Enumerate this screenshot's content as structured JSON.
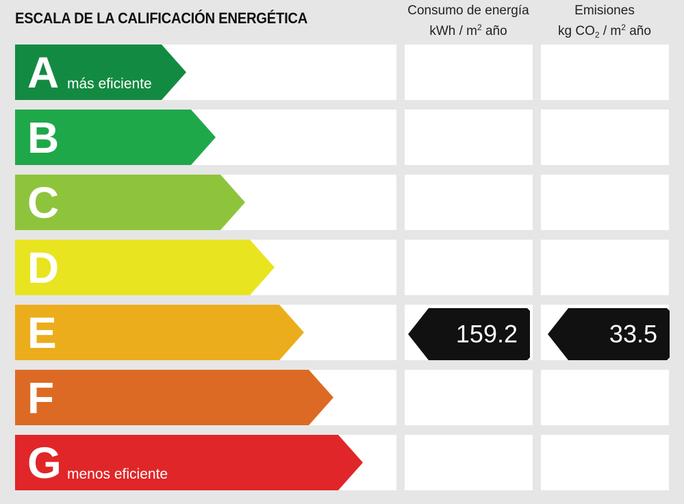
{
  "title": "ESCALA DE LA CALIFICACIÓN ENERGÉTICA",
  "columns": {
    "consumo": {
      "line1": "Consumo de energía",
      "unit_pre": "kWh / m",
      "unit_sup": "2",
      "unit_post": " año"
    },
    "emisiones": {
      "line1": "Emisiones",
      "unit_pre": "kg CO",
      "unit_sub": "2",
      "unit_mid": " / m",
      "unit_sup": "2",
      "unit_post": " año"
    }
  },
  "ratings": [
    {
      "letter": "A",
      "color": "#138a42",
      "desc": "más eficiente"
    },
    {
      "letter": "B",
      "color": "#1fa84a",
      "desc": ""
    },
    {
      "letter": "C",
      "color": "#8ec43c",
      "desc": ""
    },
    {
      "letter": "D",
      "color": "#e8e420",
      "desc": ""
    },
    {
      "letter": "E",
      "color": "#ecad1c",
      "desc": ""
    },
    {
      "letter": "F",
      "color": "#dd6a24",
      "desc": ""
    },
    {
      "letter": "G",
      "color": "#e02628",
      "desc": "menos eficiente"
    }
  ],
  "result": {
    "letter": "E",
    "consumo_value": "159.2",
    "emisiones_value": "33.5",
    "badge_color": "#111111"
  }
}
